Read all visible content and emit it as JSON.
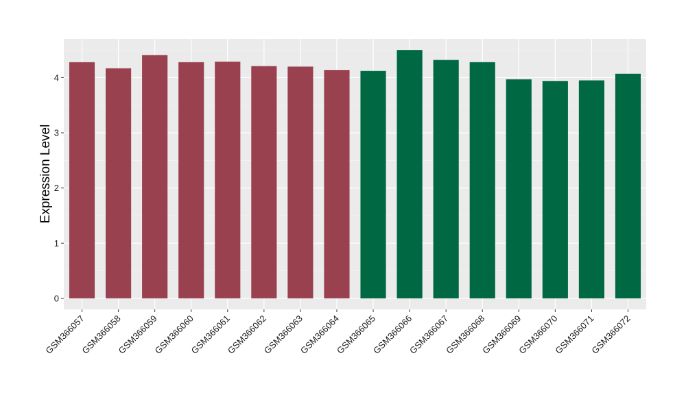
{
  "chart_data": {
    "type": "bar",
    "title": "",
    "xlabel": "",
    "ylabel": "Expression Level",
    "ylim": [
      -0.2,
      4.7
    ],
    "yticks": [
      0,
      1,
      2,
      3,
      4
    ],
    "grid": true,
    "background": "#ebebeb",
    "categories": [
      "GSM366057",
      "GSM366058",
      "GSM366059",
      "GSM366060",
      "GSM366061",
      "GSM366062",
      "GSM366063",
      "GSM366064",
      "GSM366065",
      "GSM366066",
      "GSM366067",
      "GSM366068",
      "GSM366069",
      "GSM366070",
      "GSM366071",
      "GSM366072"
    ],
    "values": [
      4.28,
      4.17,
      4.41,
      4.28,
      4.29,
      4.21,
      4.2,
      4.14,
      4.12,
      4.5,
      4.32,
      4.28,
      3.97,
      3.94,
      3.95,
      4.07
    ],
    "bar_colors": [
      "#9a4150",
      "#9a4150",
      "#9a4150",
      "#9a4150",
      "#9a4150",
      "#9a4150",
      "#9a4150",
      "#9a4150",
      "#006843",
      "#006843",
      "#006843",
      "#006843",
      "#006843",
      "#006843",
      "#006843",
      "#006843"
    ]
  }
}
